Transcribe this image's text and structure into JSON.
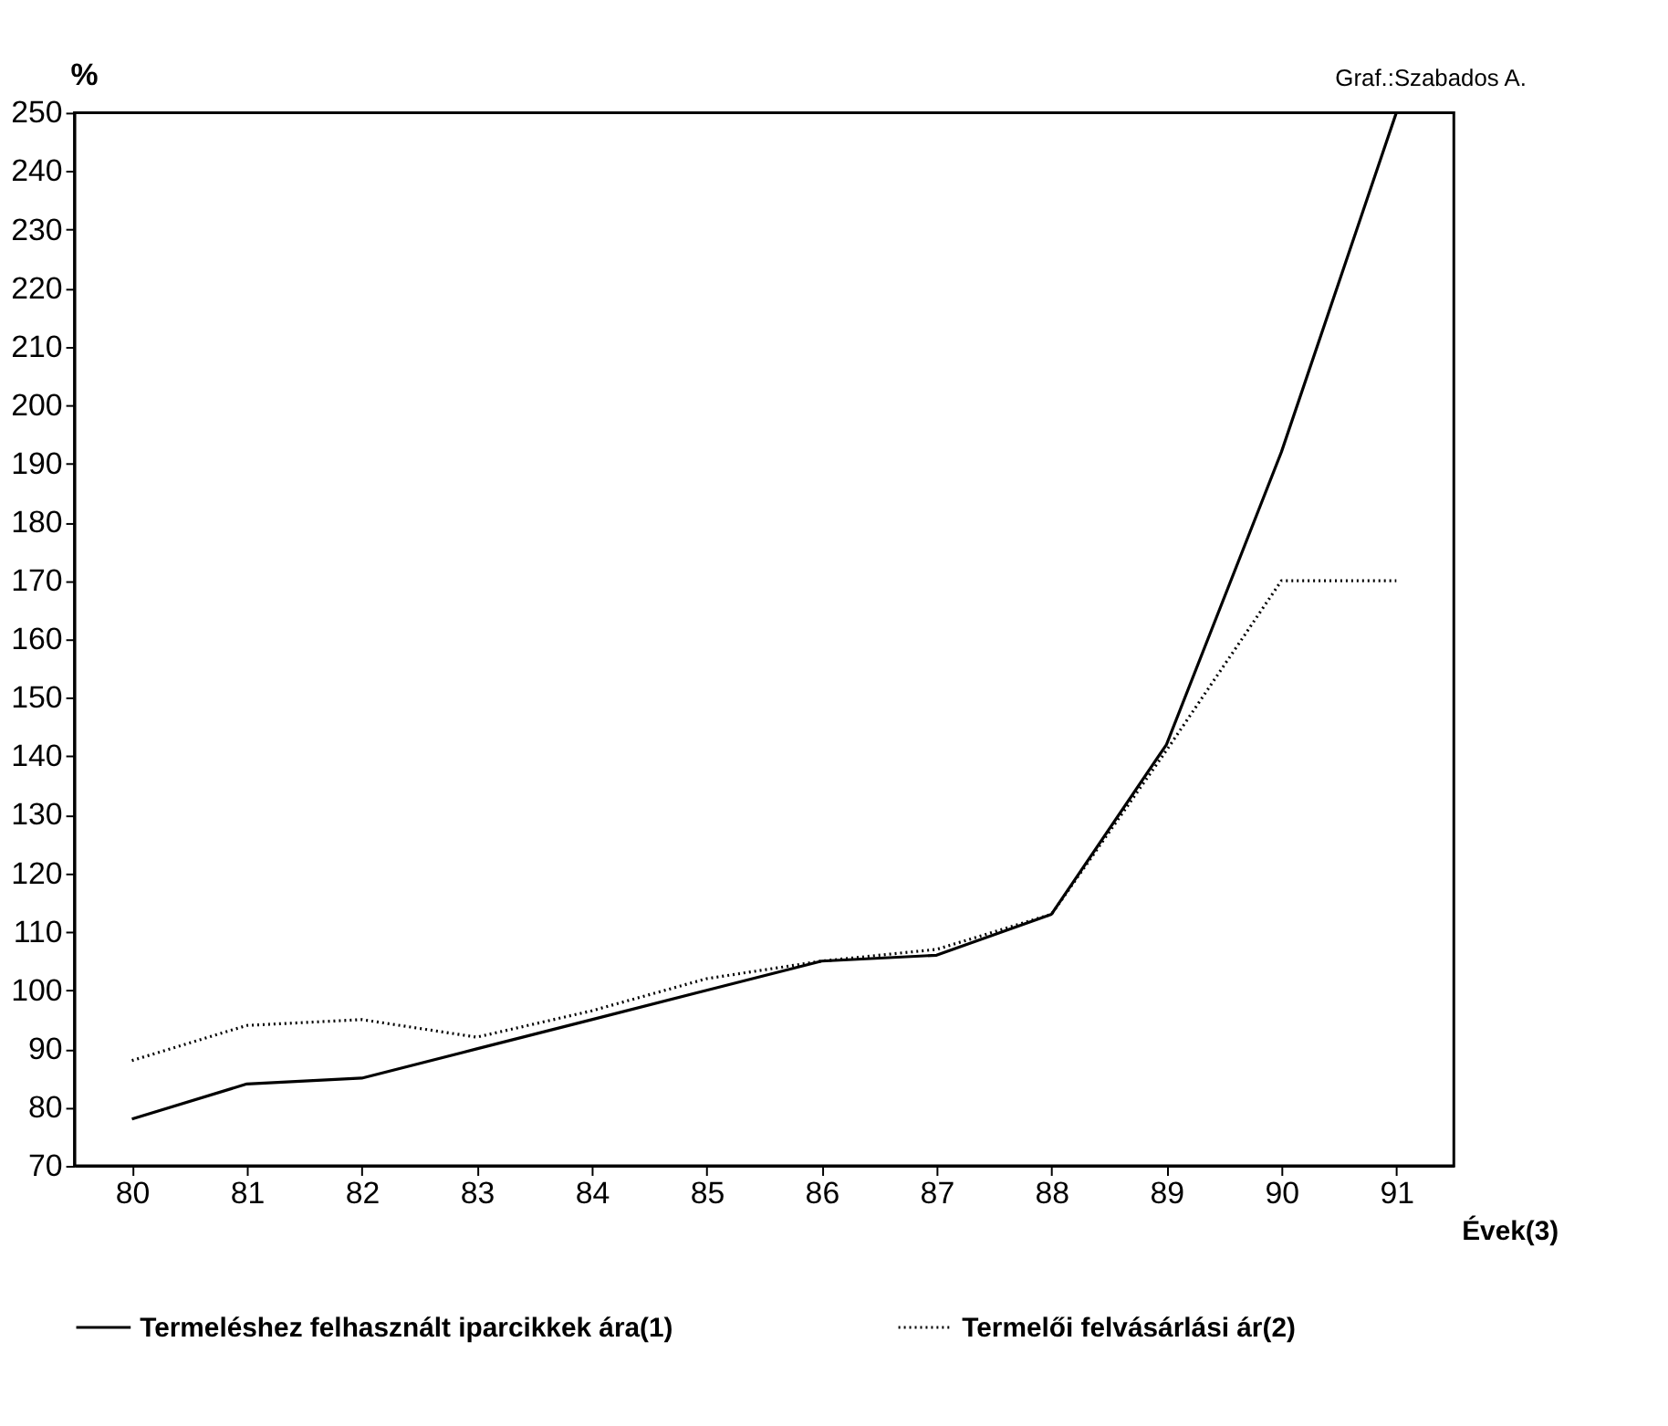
{
  "chart_data": {
    "type": "line",
    "xlabel": "Évek(3)",
    "ylabel": "%",
    "annotations": [
      "Graf.:Szabados A."
    ],
    "categories": [
      "80",
      "81",
      "82",
      "83",
      "84",
      "85",
      "86",
      "87",
      "88",
      "89",
      "90",
      "91"
    ],
    "series": [
      {
        "name": "Termeléshez felhasznált iparcikkek ára(1)",
        "color": "#000000",
        "line_style": "solid",
        "values": [
          78,
          84,
          85,
          90,
          95,
          100,
          105,
          106,
          113,
          142,
          192,
          250
        ]
      },
      {
        "name": "Termelői felvásárlási ár(2)",
        "color": "#000000",
        "line_style": "dotted",
        "values": [
          88,
          94,
          95,
          92,
          96.5,
          102,
          105,
          107,
          113,
          141,
          170,
          170
        ]
      }
    ],
    "ylim": [
      70,
      250
    ],
    "yticks": [
      70,
      80,
      90,
      100,
      110,
      120,
      130,
      140,
      150,
      160,
      170,
      180,
      190,
      200,
      210,
      220,
      230,
      240,
      250
    ],
    "grid": false,
    "legend": "bottom",
    "marker": "none"
  }
}
